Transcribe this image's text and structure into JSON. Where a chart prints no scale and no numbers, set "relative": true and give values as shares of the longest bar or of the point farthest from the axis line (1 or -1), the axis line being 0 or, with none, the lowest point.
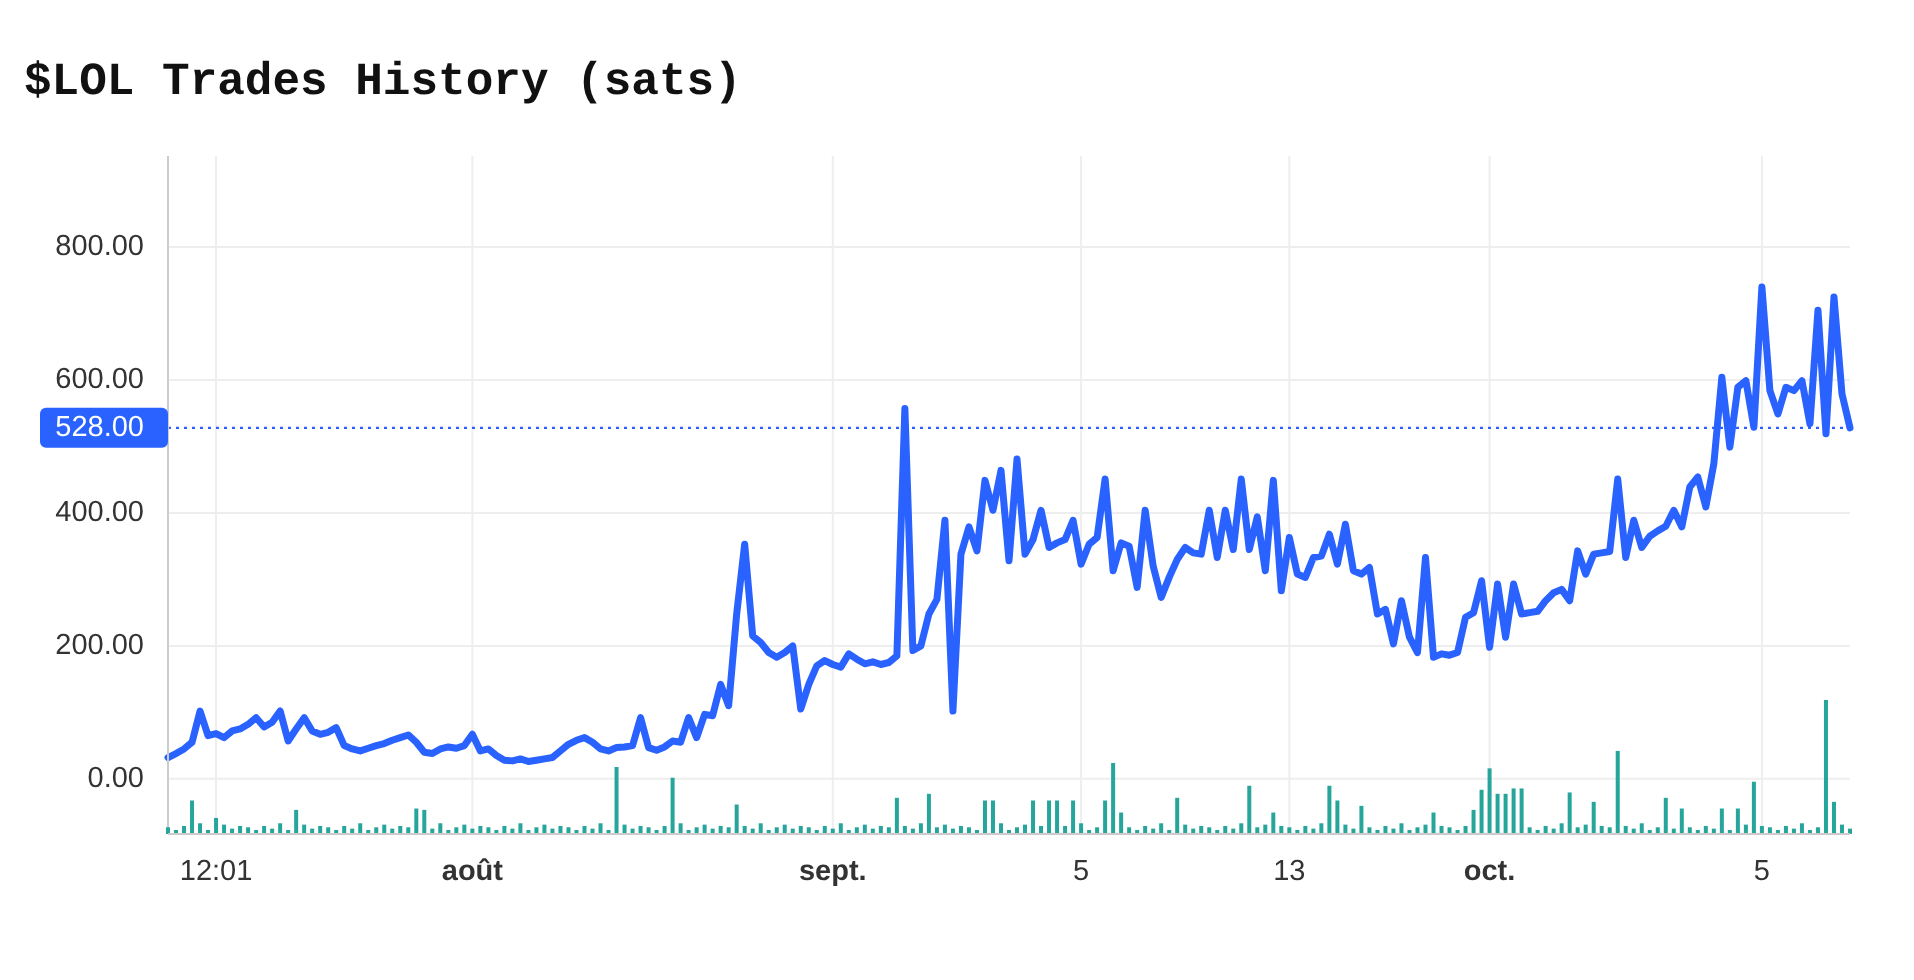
{
  "chart_data": [
    {
      "type": "line",
      "title": "$LOL Trades History (sats)",
      "categories": [
        null,
        null,
        null,
        null,
        null,
        null,
        "12:01",
        null,
        null,
        null,
        null,
        null,
        null,
        null,
        null,
        null,
        null,
        null,
        null,
        null,
        null,
        null,
        null,
        null,
        null,
        null,
        null,
        null,
        null,
        null,
        null,
        null,
        null,
        null,
        null,
        null,
        null,
        null,
        "août",
        null,
        null,
        null,
        null,
        null,
        null,
        null,
        null,
        null,
        null,
        null,
        null,
        null,
        null,
        null,
        null,
        null,
        null,
        null,
        null,
        null,
        null,
        null,
        null,
        null,
        null,
        null,
        null,
        null,
        null,
        null,
        null,
        null,
        null,
        null,
        null,
        null,
        null,
        null,
        null,
        null,
        null,
        null,
        null,
        "sept.",
        null,
        null,
        null,
        null,
        null,
        null,
        null,
        null,
        null,
        null,
        null,
        null,
        null,
        null,
        null,
        null,
        null,
        null,
        null,
        null,
        null,
        null,
        null,
        null,
        null,
        null,
        null,
        null,
        null,
        null,
        "5",
        null,
        null,
        null,
        null,
        null,
        null,
        null,
        null,
        null,
        null,
        null,
        null,
        null,
        null,
        null,
        null,
        null,
        null,
        null,
        null,
        null,
        null,
        null,
        null,
        null,
        "13",
        null,
        null,
        null,
        null,
        null,
        null,
        null,
        null,
        null,
        null,
        null,
        null,
        null,
        null,
        null,
        null,
        null,
        null,
        null,
        null,
        null,
        null,
        null,
        null,
        "oct.",
        null,
        null,
        null,
        null,
        null,
        null,
        null,
        null,
        null,
        null,
        null,
        null,
        null,
        null,
        null,
        null,
        null,
        null,
        null,
        null,
        null,
        null,
        null,
        null,
        null,
        null,
        null,
        null,
        null,
        null,
        null,
        null,
        null,
        "5",
        null,
        null,
        null,
        null,
        null,
        null,
        null,
        null,
        null,
        null,
        null
      ],
      "color": "#2962ff",
      "values": [
        32,
        38,
        45,
        55,
        102,
        65,
        68,
        62,
        72,
        75,
        82,
        92,
        78,
        85,
        102,
        57,
        75,
        92,
        72,
        67,
        70,
        77,
        50,
        45,
        42,
        46,
        50,
        53,
        58,
        62,
        66,
        55,
        40,
        38,
        45,
        48,
        46,
        50,
        67,
        42,
        45,
        35,
        28,
        27,
        30,
        26,
        28,
        30,
        32,
        42,
        52,
        58,
        62,
        55,
        45,
        42,
        47,
        48,
        50,
        92,
        47,
        43,
        48,
        57,
        55,
        92,
        62,
        97,
        95,
        142,
        110,
        248,
        353,
        215,
        205,
        190,
        183,
        190,
        200,
        105,
        142,
        170,
        178,
        172,
        168,
        188,
        180,
        173,
        176,
        172,
        175,
        185,
        557,
        193,
        200,
        248,
        270,
        389,
        102,
        338,
        379,
        343,
        449,
        404,
        464,
        328,
        481,
        338,
        360,
        404,
        348,
        355,
        360,
        389,
        323,
        353,
        363,
        451,
        313,
        355,
        350,
        288,
        404,
        320,
        273,
        303,
        330,
        348,
        340,
        338,
        404,
        333,
        404,
        345,
        451,
        345,
        394,
        313,
        449,
        283,
        363,
        308,
        303,
        333,
        335,
        368,
        323,
        383,
        313,
        308,
        318,
        248,
        255,
        203,
        268,
        213,
        190,
        333,
        183,
        188,
        186,
        190,
        243,
        250,
        298,
        198,
        293,
        213,
        293,
        248,
        250,
        252,
        268,
        280,
        285,
        268,
        343,
        308,
        338,
        340,
        342,
        451,
        333,
        389,
        348,
        365,
        373,
        380,
        404,
        379,
        439,
        454,
        409,
        474,
        604,
        499,
        589,
        599,
        529,
        740,
        584,
        549,
        589,
        584,
        599,
        534,
        705,
        519,
        725,
        579,
        528
      ],
      "ylim": [
        -83,
        937
      ],
      "yticks": [
        {
          "value": 0,
          "label": "0.00"
        },
        {
          "value": 200,
          "label": "200.00"
        },
        {
          "value": 400,
          "label": "400.00"
        },
        {
          "value": 600,
          "label": "600.00"
        },
        {
          "value": 800,
          "label": "800.00"
        }
      ],
      "grid": true,
      "line_style": "solid",
      "ref_lines": [
        {
          "axis": "y",
          "value": 528,
          "label": "528.00",
          "color": "#2962ff",
          "line_style": "dotted"
        }
      ]
    },
    {
      "type": "bar",
      "relative": true,
      "categories": [
        null,
        null,
        null,
        null,
        null,
        null,
        null,
        null,
        null,
        null,
        null,
        null,
        null,
        null,
        null,
        null,
        null,
        null,
        null,
        null,
        null,
        null,
        null,
        null,
        null,
        null,
        null,
        null,
        null,
        null,
        null,
        null,
        null,
        null,
        null,
        null,
        null,
        null,
        null,
        null,
        null,
        null,
        null,
        null,
        null,
        null,
        null,
        null,
        null,
        null,
        null,
        null,
        null,
        null,
        null,
        null,
        null,
        null,
        null,
        null,
        null,
        null,
        null,
        null,
        null,
        null,
        null,
        null,
        null,
        null,
        null,
        null,
        null,
        null,
        null,
        null,
        null,
        null,
        null,
        null,
        null,
        null,
        null,
        null,
        null,
        null,
        null,
        null,
        null,
        null,
        null,
        null,
        null,
        null,
        null,
        null,
        null,
        null,
        null,
        null,
        null,
        null,
        null,
        null,
        null,
        null,
        null,
        null,
        null,
        null,
        null,
        null,
        null,
        null,
        null,
        null,
        null,
        null,
        null,
        null,
        null,
        null,
        null,
        null,
        null,
        null,
        null,
        null,
        null,
        null,
        null,
        null,
        null,
        null,
        null,
        null,
        null,
        null,
        null,
        null,
        null,
        null,
        null,
        null,
        null,
        null,
        null,
        null,
        null,
        null,
        null,
        null,
        null,
        null,
        null,
        null,
        null,
        null,
        null,
        null,
        null,
        null,
        null,
        null,
        null,
        null,
        null,
        null,
        null,
        null,
        null,
        null,
        null,
        null,
        null,
        null,
        null,
        null,
        null,
        null,
        null,
        null,
        null,
        null,
        null,
        null,
        null,
        null,
        null,
        null,
        null,
        null,
        null,
        null,
        null,
        null,
        null,
        null,
        null,
        null,
        null,
        null,
        null,
        null,
        null,
        null,
        null,
        null,
        null,
        null,
        null
      ],
      "color": "#26a69a",
      "values": [
        0.05,
        0.03,
        0.06,
        0.25,
        0.08,
        0.03,
        0.12,
        0.07,
        0.04,
        0.06,
        0.05,
        0.03,
        0.06,
        0.04,
        0.08,
        0.03,
        0.18,
        0.07,
        0.04,
        0.06,
        0.05,
        0.03,
        0.06,
        0.04,
        0.08,
        0.03,
        0.05,
        0.07,
        0.04,
        0.06,
        0.05,
        0.19,
        0.18,
        0.04,
        0.08,
        0.03,
        0.05,
        0.07,
        0.04,
        0.06,
        0.05,
        0.03,
        0.06,
        0.04,
        0.08,
        0.03,
        0.05,
        0.07,
        0.04,
        0.06,
        0.05,
        0.03,
        0.06,
        0.04,
        0.08,
        0.03,
        0.5,
        0.07,
        0.04,
        0.06,
        0.05,
        0.03,
        0.06,
        0.42,
        0.08,
        0.03,
        0.05,
        0.07,
        0.04,
        0.06,
        0.05,
        0.22,
        0.06,
        0.04,
        0.08,
        0.03,
        0.05,
        0.07,
        0.04,
        0.06,
        0.05,
        0.03,
        0.06,
        0.04,
        0.08,
        0.03,
        0.05,
        0.07,
        0.04,
        0.06,
        0.05,
        0.27,
        0.06,
        0.04,
        0.08,
        0.3,
        0.05,
        0.07,
        0.04,
        0.06,
        0.05,
        0.03,
        0.25,
        0.25,
        0.08,
        0.03,
        0.05,
        0.07,
        0.25,
        0.06,
        0.25,
        0.25,
        0.06,
        0.25,
        0.08,
        0.03,
        0.05,
        0.25,
        0.53,
        0.16,
        0.05,
        0.03,
        0.06,
        0.04,
        0.08,
        0.03,
        0.27,
        0.07,
        0.04,
        0.06,
        0.05,
        0.03,
        0.06,
        0.04,
        0.08,
        0.36,
        0.05,
        0.07,
        0.16,
        0.06,
        0.05,
        0.03,
        0.06,
        0.04,
        0.08,
        0.36,
        0.25,
        0.07,
        0.04,
        0.21,
        0.05,
        0.03,
        0.06,
        0.04,
        0.08,
        0.03,
        0.05,
        0.07,
        0.16,
        0.06,
        0.05,
        0.03,
        0.06,
        0.18,
        0.33,
        0.49,
        0.3,
        0.3,
        0.34,
        0.34,
        0.05,
        0.03,
        0.06,
        0.04,
        0.08,
        0.31,
        0.05,
        0.07,
        0.24,
        0.06,
        0.05,
        0.62,
        0.06,
        0.04,
        0.08,
        0.03,
        0.05,
        0.27,
        0.04,
        0.19,
        0.05,
        0.03,
        0.06,
        0.04,
        0.19,
        0.03,
        0.19,
        0.07,
        0.39,
        0.06,
        0.05,
        0.03,
        0.06,
        0.04,
        0.08,
        0.03,
        0.05,
        1,
        0.24,
        0.07,
        0.04
      ]
    }
  ]
}
